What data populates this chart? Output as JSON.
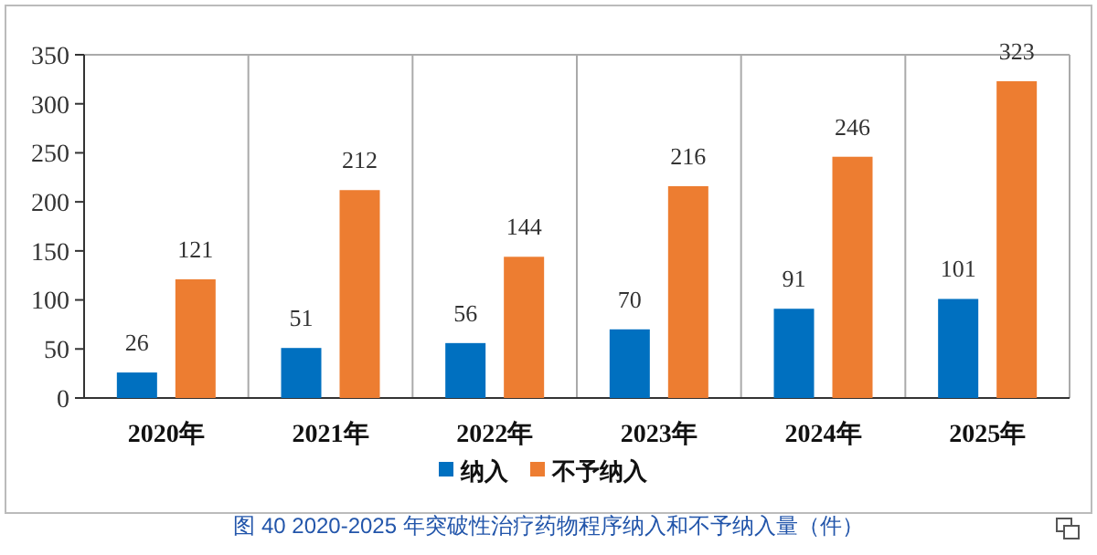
{
  "chart_data": {
    "type": "bar",
    "title": "图 40 2020-2025 年突破性治疗药物程序纳入和不予纳入量（件）",
    "categories": [
      "2020年",
      "2021年",
      "2022年",
      "2023年",
      "2024年",
      "2025年"
    ],
    "series": [
      {
        "name": "纳入",
        "color": "#0070c0",
        "values": [
          26,
          51,
          56,
          70,
          91,
          101
        ]
      },
      {
        "name": "不予纳入",
        "color": "#ed7d31",
        "values": [
          121,
          212,
          144,
          216,
          246,
          323
        ]
      }
    ],
    "ylim": [
      0,
      350
    ],
    "yticks": [
      0,
      50,
      100,
      150,
      200,
      250,
      300,
      350
    ],
    "grid": "x",
    "legend": "bottom",
    "data_labels": true
  }
}
